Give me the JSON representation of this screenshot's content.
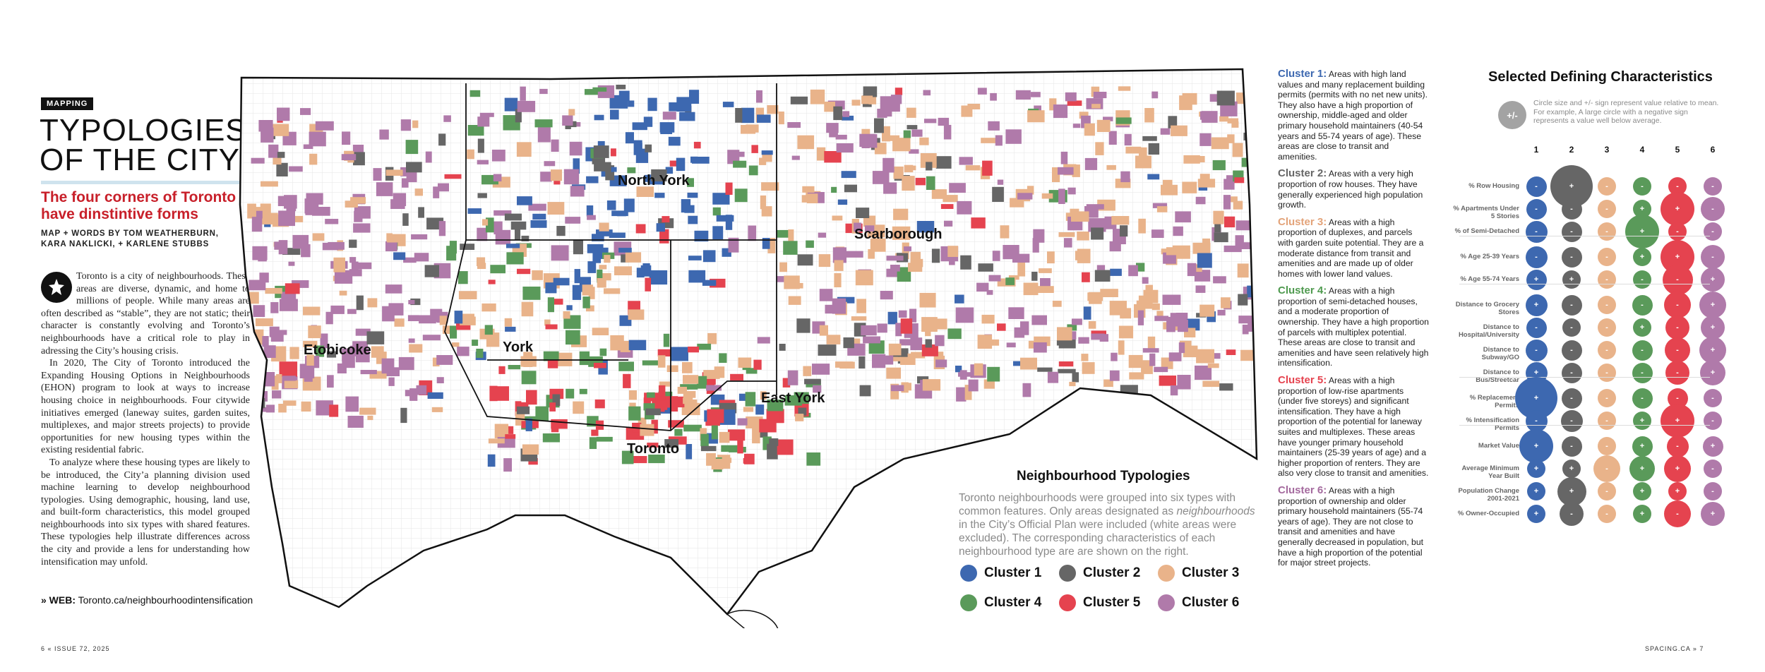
{
  "section_tag": "MAPPING",
  "headline": [
    "TYPOLOGIES",
    "OF THE CITY"
  ],
  "subheadline": "The four corners of Toronto have dinstintive forms",
  "byline": [
    "MAP + WORDS BY TOM WEATHERBURN,",
    "KARA NAKLICKI, + KARLENE STUBBS"
  ],
  "body": [
    "Toronto is a city of neighbourhoods. These areas are diverse, dynamic, and home to millions of people. While many areas are often described as “stable”, they are not static; their character is constantly evolving and Toronto’s neighbourhoods have a critical role to play in adressing the City’s housing crisis.",
    "In 2020, The City of Toronto introduced the Expanding Housing Options in Neighbourhoods (EHON) program to look at ways to increase housing choice in neighbourhoods. Four citywide initiatives emerged (laneway suites, garden suites, multiplexes, and major streets projects) to provide opportunities for new housing types within the existing residential fabric.",
    "To analyze where these housing types are likely to be introduced, the City’a planning division used machine learning to develop neighbourhood typologies. Using demographic, housing, land use, and built-form characteristics, this model grouped neighbourhoods into six types with shared features. These typologies help illustrate differences across the city and provide a lens for understanding how intensification may unfold."
  ],
  "web": {
    "label": "» WEB:",
    "url": "Toronto.ca/neighbourhoodintensification"
  },
  "folio_left": "6 « ISSUE 72, 2025",
  "folio_right": "SPACING.CA » 7",
  "map": {
    "labels": [
      "North York",
      "Scarborough",
      "Etobicoke",
      "York",
      "East York",
      "Toronto"
    ]
  },
  "legend": {
    "title": "Neighbourhood Typologies",
    "description_parts": [
      "Toronto neighbourhoods were grouped into six types with common features. Only areas designated as ",
      "neighbourhoods",
      " in the City’s Official Plan were included (white areas were excluded). The corresponding characteristics of each neighbourhood type are are shown on the right."
    ],
    "items": [
      {
        "label": "Cluster 1",
        "color": "#3d68b0"
      },
      {
        "label": "Cluster 2",
        "color": "#666666"
      },
      {
        "label": "Cluster 3",
        "color": "#e9b38a"
      },
      {
        "label": "Cluster 4",
        "color": "#5a9a5a"
      },
      {
        "label": "Cluster 5",
        "color": "#e5434f"
      },
      {
        "label": "Cluster 6",
        "color": "#b07aaa"
      }
    ]
  },
  "clusters": [
    {
      "name": "Cluster 1:",
      "color": "#3d68b0",
      "text": "Areas with high land values and many replacement building permits (permits with no net new units). They also have a high proportion of ownership, middle-aged and older primary household maintainers (40-54 years and 55-74 years of age). These areas are close to transit and amenities."
    },
    {
      "name": "Cluster 2:",
      "color": "#666666",
      "text": "Areas with a very high proportion of row houses. They have generally experienced high population growth."
    },
    {
      "name": "Cluster 3:",
      "color": "#e3a379",
      "text": "Areas with a high proportion of duplexes, and parcels with garden suite potential. They are a moderate distance from transit and amenities and are made up of older homes with lower land values."
    },
    {
      "name": "Cluster 4:",
      "color": "#4f9a4f",
      "text": "Areas with a high proportion of semi-detached houses, and a moderate proportion of ownership. They have a high proportion of parcels with multiplex potential. These areas are close to transit and amenities and have seen relatively high intensification."
    },
    {
      "name": "Cluster 5:",
      "color": "#e5434f",
      "text": "Areas with a high proportion of low-rise apartments (under five storeys) and significant intensification. They have a high proportion of the potential for laneway suites and multiplexes. These areas have younger primary household maintainers (25-39 years of age) and a higher proportion of renters. They are also very close to transit and amenities."
    },
    {
      "name": "Cluster 6:",
      "color": "#a46a9e",
      "text": "Areas with a high proportion of ownership and older primary household maintainers (55-74 years of age). They are not close to transit and amenities and have generally decreased in population, but have a high proportion of the potential for major street projects."
    }
  ],
  "characteristics": {
    "title": "Selected Defining Characteristics",
    "note": "Circle size and +/- sign represent value relative to mean. For example, A large circle with a negative sign represents a value well below average.",
    "note_symbol": "+/-",
    "columns": [
      "1",
      "2",
      "3",
      "4",
      "5",
      "6"
    ],
    "rows": [
      {
        "label": "% Row Housing",
        "group": 0,
        "cells": [
          [
            "-",
            0.35
          ],
          [
            "+",
            1.0
          ],
          [
            "-",
            0.3
          ],
          [
            "-",
            0.3
          ],
          [
            "-",
            0.3
          ],
          [
            "-",
            0.3
          ]
        ]
      },
      {
        "label": "% Apartments Under 5 Stories",
        "group": 0,
        "cells": [
          [
            "-",
            0.35
          ],
          [
            "-",
            0.35
          ],
          [
            "-",
            0.3
          ],
          [
            "+",
            0.3
          ],
          [
            "+",
            0.75
          ],
          [
            "-",
            0.45
          ]
        ]
      },
      {
        "label": "% of Semi-Detached",
        "group": 0,
        "cells": [
          [
            "-",
            0.4
          ],
          [
            "-",
            0.35
          ],
          [
            "-",
            0.3
          ],
          [
            "+",
            0.75
          ],
          [
            "-",
            0.3
          ],
          [
            "-",
            0.3
          ]
        ]
      },
      {
        "label": "% Age 25-39 Years",
        "group": 1,
        "cells": [
          [
            "-",
            0.4
          ],
          [
            "-",
            0.35
          ],
          [
            "-",
            0.3
          ],
          [
            "+",
            0.3
          ],
          [
            "+",
            0.75
          ],
          [
            "-",
            0.45
          ]
        ]
      },
      {
        "label": "% Age 55-74 Years",
        "group": 1,
        "cells": [
          [
            "+",
            0.35
          ],
          [
            "+",
            0.3
          ],
          [
            "-",
            0.3
          ],
          [
            "-",
            0.3
          ],
          [
            "-",
            0.65
          ],
          [
            "+",
            0.45
          ]
        ]
      },
      {
        "label": "Distance to Grocery Stores",
        "group": 2,
        "cells": [
          [
            "+",
            0.4
          ],
          [
            "-",
            0.35
          ],
          [
            "-",
            0.3
          ],
          [
            "-",
            0.35
          ],
          [
            "-",
            0.55
          ],
          [
            "+",
            0.55
          ]
        ]
      },
      {
        "label": "Distance to Hospital/University",
        "group": 2,
        "cells": [
          [
            "-",
            0.35
          ],
          [
            "-",
            0.3
          ],
          [
            "-",
            0.3
          ],
          [
            "+",
            0.3
          ],
          [
            "-",
            0.45
          ],
          [
            "+",
            0.45
          ]
        ]
      },
      {
        "label": "Distance to Subway/GO",
        "group": 2,
        "cells": [
          [
            "-",
            0.4
          ],
          [
            "-",
            0.35
          ],
          [
            "-",
            0.3
          ],
          [
            "-",
            0.35
          ],
          [
            "-",
            0.5
          ],
          [
            "+",
            0.55
          ]
        ]
      },
      {
        "label": "Distance to Bus/Streetcar",
        "group": 2,
        "cells": [
          [
            "+",
            0.4
          ],
          [
            "-",
            0.35
          ],
          [
            "-",
            0.3
          ],
          [
            "-",
            0.35
          ],
          [
            "-",
            0.45
          ],
          [
            "+",
            0.5
          ]
        ]
      },
      {
        "label": "% Replacement Permits",
        "group": 3,
        "cells": [
          [
            "+",
            1.0
          ],
          [
            "-",
            0.35
          ],
          [
            "-",
            0.3
          ],
          [
            "-",
            0.35
          ],
          [
            "-",
            0.35
          ],
          [
            "-",
            0.3
          ]
        ]
      },
      {
        "label": "% Intensification Permits",
        "group": 3,
        "cells": [
          [
            "-",
            0.4
          ],
          [
            "-",
            0.4
          ],
          [
            "-",
            0.3
          ],
          [
            "+",
            0.3
          ],
          [
            "+",
            0.75
          ],
          [
            "-",
            0.3
          ]
        ]
      },
      {
        "label": "Market Value",
        "group": 4,
        "cells": [
          [
            "+",
            0.75
          ],
          [
            "-",
            0.35
          ],
          [
            "-",
            0.3
          ],
          [
            "+",
            0.35
          ],
          [
            "-",
            0.4
          ],
          [
            "+",
            0.35
          ]
        ]
      },
      {
        "label": "Average Minimum Year Built",
        "group": 4,
        "cells": [
          [
            "+",
            0.3
          ],
          [
            "+",
            0.3
          ],
          [
            "-",
            0.55
          ],
          [
            "+",
            0.5
          ],
          [
            "+",
            0.55
          ],
          [
            "-",
            0.3
          ]
        ]
      },
      {
        "label": "Population Change 2001-2021",
        "group": 4,
        "cells": [
          [
            "+",
            0.3
          ],
          [
            "+",
            0.6
          ],
          [
            "-",
            0.3
          ],
          [
            "+",
            0.3
          ],
          [
            "+",
            0.3
          ],
          [
            "-",
            0.3
          ]
        ]
      },
      {
        "label": "% Owner-Occupied",
        "group": 4,
        "cells": [
          [
            "+",
            0.3
          ],
          [
            "-",
            0.45
          ],
          [
            "-",
            0.3
          ],
          [
            "+",
            0.3
          ],
          [
            "-",
            0.55
          ],
          [
            "+",
            0.45
          ]
        ]
      }
    ]
  }
}
